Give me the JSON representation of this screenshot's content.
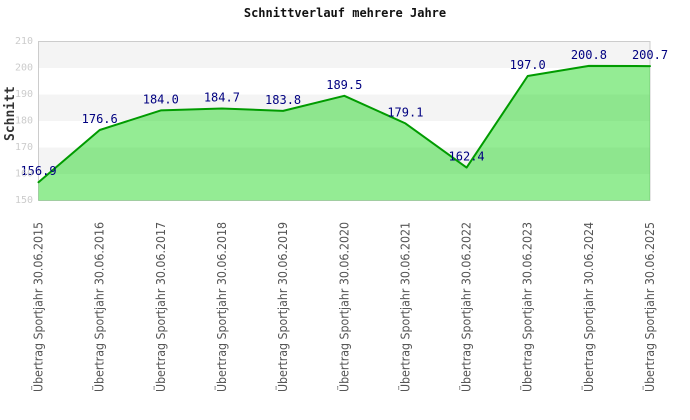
{
  "chart_data": {
    "type": "area",
    "title": "Schnittverlauf mehrere Jahre",
    "xlabel": "",
    "ylabel": "Schnitt",
    "categories": [
      "Übertrag Sportjahr 30.06.2015",
      "Übertrag Sportjahr 30.06.2016",
      "Übertrag Sportjahr 30.06.2017",
      "Übertrag Sportjahr 30.06.2018",
      "Übertrag Sportjahr 30.06.2019",
      "Übertrag Sportjahr 30.06.2020",
      "Übertrag Sportjahr 30.06.2021",
      "Übertrag Sportjahr 30.06.2022",
      "Übertrag Sportjahr 30.06.2023",
      "Übertrag Sportjahr 30.06.2024",
      "Übertrag Sportjahr 30.06.2025"
    ],
    "values": [
      156.9,
      176.6,
      184.0,
      184.7,
      183.8,
      189.5,
      179.1,
      162.4,
      197.0,
      200.8,
      200.7
    ],
    "value_labels": [
      "156.9",
      "176.6",
      "184.0",
      "184.7",
      "183.8",
      "189.5",
      "179.1",
      "162.4",
      "197.0",
      "200.8",
      "200.7"
    ],
    "ylim": [
      150,
      210
    ],
    "yticks": [
      150,
      160,
      170,
      180,
      190,
      200,
      210
    ],
    "grid": "horizontal-alternating-bands",
    "legend": "none",
    "colors": {
      "area_fill": "#00d200",
      "area_opacity": "0.42",
      "line": "#009b00",
      "value_label": "#000080",
      "band_gray": "#f4f4f4",
      "band_white": "#ffffff",
      "plot_border": "#cccccc",
      "ytick_label": "#cccccc",
      "xtick_label": "#555555",
      "title": "#111111",
      "ylabel": "#333333"
    }
  }
}
